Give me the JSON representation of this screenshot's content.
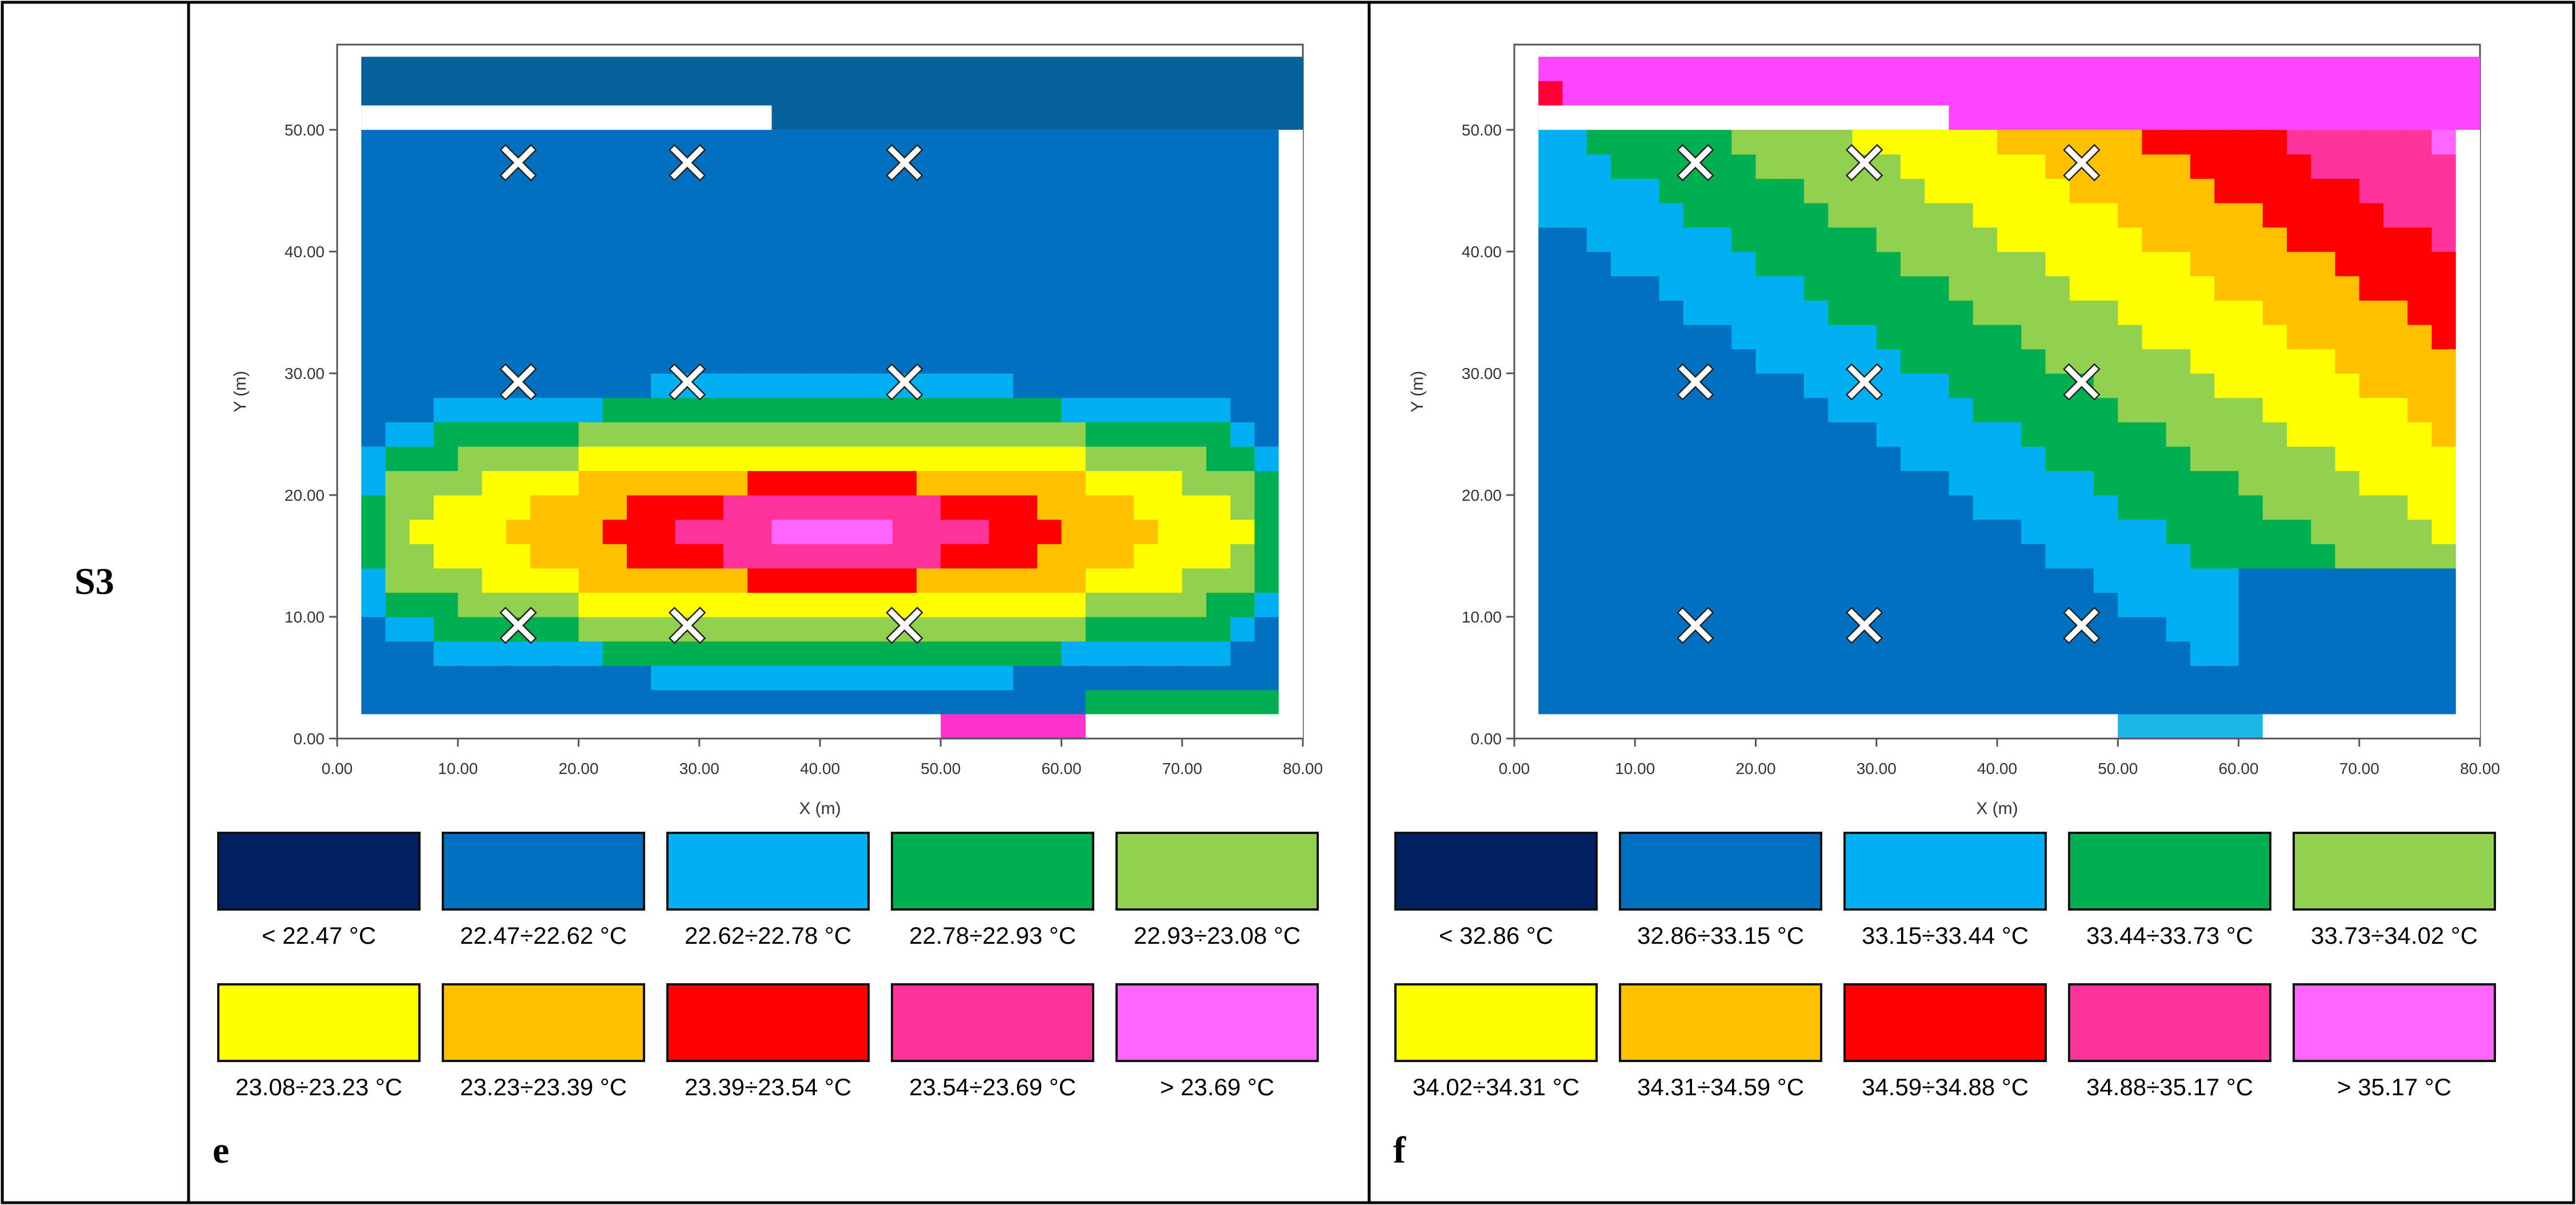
{
  "row_label": "S3",
  "chart_data": [
    {
      "type": "heatmap",
      "panel": "e",
      "title": "",
      "xlabel": "X (m)",
      "ylabel": "Y (m)",
      "xlim": [
        0,
        80
      ],
      "ylim": [
        0,
        57
      ],
      "x_ticks": [
        "0.00",
        "10.00",
        "20.00",
        "30.00",
        "40.00",
        "50.00",
        "60.00",
        "70.00",
        "80.00"
      ],
      "y_ticks": [
        "0.00",
        "10.00",
        "20.00",
        "30.00",
        "40.00",
        "50.00"
      ],
      "markers": [
        [
          15,
          9
        ],
        [
          29,
          9
        ],
        [
          47,
          9
        ],
        [
          15,
          29
        ],
        [
          29,
          29
        ],
        [
          47,
          29
        ],
        [
          15,
          47
        ],
        [
          29,
          47
        ],
        [
          47,
          47
        ]
      ],
      "marker_symbol": "✕",
      "legend": [
        {
          "label": "< 22.47 °C",
          "color": "#002060"
        },
        {
          "label": "22.47÷22.62 °C",
          "color": "#0070c0"
        },
        {
          "label": "22.62÷22.78 °C",
          "color": "#00b0f0"
        },
        {
          "label": "22.78÷22.93 °C",
          "color": "#00b050"
        },
        {
          "label": "22.93÷23.08 °C",
          "color": "#92d050"
        },
        {
          "label": "23.08÷23.23 °C",
          "color": "#ffff00"
        },
        {
          "label": "23.23÷23.39 °C",
          "color": "#ffc000"
        },
        {
          "label": "23.39÷23.54 °C",
          "color": "#ff0000"
        },
        {
          "label": "23.54÷23.69 °C",
          "color": "#ff3399"
        },
        {
          "label": "> 23.69 °C",
          "color": "#ff66ff"
        }
      ]
    },
    {
      "type": "heatmap",
      "panel": "f",
      "title": "",
      "xlabel": "X (m)",
      "ylabel": "Y (m)",
      "xlim": [
        0,
        80
      ],
      "ylim": [
        0,
        57
      ],
      "x_ticks": [
        "0.00",
        "10.00",
        "20.00",
        "30.00",
        "40.00",
        "50.00",
        "60.00",
        "70.00",
        "80.00"
      ],
      "y_ticks": [
        "0.00",
        "10.00",
        "20.00",
        "30.00",
        "40.00",
        "50.00"
      ],
      "markers": [
        [
          15,
          9
        ],
        [
          29,
          9
        ],
        [
          47,
          9
        ],
        [
          15,
          29
        ],
        [
          29,
          29
        ],
        [
          47,
          29
        ],
        [
          15,
          47
        ],
        [
          29,
          47
        ],
        [
          47,
          47
        ]
      ],
      "marker_symbol": "✕",
      "legend": [
        {
          "label": "< 32.86 °C",
          "color": "#002060"
        },
        {
          "label": "32.86÷33.15 °C",
          "color": "#0070c0"
        },
        {
          "label": "33.15÷33.44 °C",
          "color": "#00b0f0"
        },
        {
          "label": "33.44÷33.73 °C",
          "color": "#00b050"
        },
        {
          "label": "33.73÷34.02 °C",
          "color": "#92d050"
        },
        {
          "label": "34.02÷34.31 °C",
          "color": "#ffff00"
        },
        {
          "label": "34.31÷34.59 °C",
          "color": "#ffc000"
        },
        {
          "label": "34.59÷34.88 °C",
          "color": "#ff0000"
        },
        {
          "label": "34.88÷35.17 °C",
          "color": "#ff3399"
        },
        {
          "label": "> 35.17 °C",
          "color": "#ff66ff"
        }
      ]
    }
  ]
}
